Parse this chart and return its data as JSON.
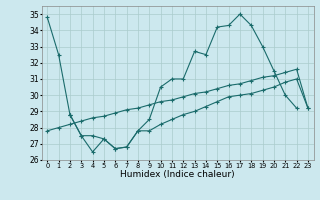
{
  "title": "",
  "xlabel": "Humidex (Indice chaleur)",
  "bg_color": "#cce8ee",
  "grid_color": "#aacccc",
  "line_color": "#1a6b6b",
  "xlim": [
    -0.5,
    23.5
  ],
  "ylim": [
    26,
    35.5
  ],
  "yticks": [
    26,
    27,
    28,
    29,
    30,
    31,
    32,
    33,
    34,
    35
  ],
  "xtick_labels": [
    "0",
    "1",
    "2",
    "3",
    "4",
    "5",
    "6",
    "7",
    "8",
    "9",
    "10",
    "11",
    "12",
    "13",
    "14",
    "15",
    "16",
    "17",
    "18",
    "19",
    "20",
    "21",
    "22",
    "23"
  ],
  "series": [
    {
      "x": [
        0,
        1,
        2
      ],
      "y": [
        34.8,
        32.5,
        28.8
      ]
    },
    {
      "x": [
        2,
        3,
        4,
        5,
        6,
        7,
        8,
        9,
        10,
        11,
        12,
        13,
        14,
        15,
        16,
        17,
        18,
        19,
        20,
        21,
        22
      ],
      "y": [
        28.8,
        27.5,
        26.5,
        27.3,
        26.7,
        26.8,
        27.8,
        28.5,
        30.5,
        31.0,
        31.0,
        32.7,
        32.5,
        34.2,
        34.3,
        35.0,
        34.3,
        33.0,
        31.5,
        30.0,
        29.2
      ]
    },
    {
      "x": [
        0,
        1,
        2,
        3,
        4,
        5,
        6,
        7,
        8,
        9,
        10,
        11,
        12,
        13,
        14,
        15,
        16,
        17,
        18,
        19,
        20,
        21,
        22,
        23
      ],
      "y": [
        27.8,
        28.0,
        28.2,
        28.4,
        28.6,
        28.7,
        28.9,
        29.1,
        29.2,
        29.4,
        29.6,
        29.7,
        29.9,
        30.1,
        30.2,
        30.4,
        30.6,
        30.7,
        30.9,
        31.1,
        31.2,
        31.4,
        31.6,
        29.2
      ]
    },
    {
      "x": [
        2,
        3,
        4,
        5,
        6,
        7,
        8,
        9,
        10,
        11,
        12,
        13,
        14,
        15,
        16,
        17,
        18,
        19,
        20,
        21,
        22,
        23
      ],
      "y": [
        28.8,
        27.5,
        27.5,
        27.3,
        26.7,
        26.8,
        27.8,
        27.8,
        28.2,
        28.5,
        28.8,
        29.0,
        29.3,
        29.6,
        29.9,
        30.0,
        30.1,
        30.3,
        30.5,
        30.8,
        31.0,
        29.2
      ]
    }
  ]
}
